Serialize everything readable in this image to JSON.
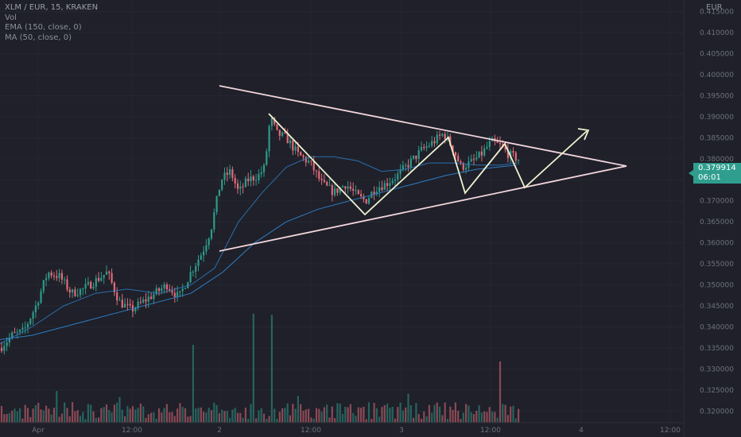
{
  "symbol_line": "XLM / EUR, 15, KRAKEN",
  "indicators": [
    "Vol",
    "EMA (150, close, 0)",
    "MA (50, close, 0)"
  ],
  "currency": "EUR",
  "current_price": {
    "value": "0.379914",
    "countdown": "06:01"
  },
  "colors": {
    "background": "#1f2029",
    "up_candle": "#2e9a8a",
    "down_candle": "#e26b7a",
    "ema_line": "#2e7dc4",
    "ma_line": "#2e7dc4",
    "triangle_lines": "#f2d5dc",
    "pattern_lines": "#eef2d0",
    "price_tag": "#2f9e8f"
  },
  "chart_data": {
    "type": "candlestick",
    "y_axis": {
      "ticks": [
        "0.320000",
        "0.325000",
        "0.330000",
        "0.335000",
        "0.340000",
        "0.345000",
        "0.350000",
        "0.355000",
        "0.360000",
        "0.365000",
        "0.370000",
        "0.375000",
        "0.380000",
        "0.385000",
        "0.390000",
        "0.395000",
        "0.400000",
        "0.405000",
        "0.410000",
        "0.415000"
      ],
      "range": [
        0.3195,
        0.417
      ]
    },
    "x_axis": {
      "ticks": [
        "Apr",
        "12:00",
        "2",
        "12:00",
        "3",
        "12:00",
        "4",
        "12:00"
      ]
    },
    "price_path": [
      [
        0,
        0.335
      ],
      [
        15,
        0.338
      ],
      [
        30,
        0.339
      ],
      [
        45,
        0.345
      ],
      [
        60,
        0.353
      ],
      [
        75,
        0.352
      ],
      [
        90,
        0.348
      ],
      [
        105,
        0.349
      ],
      [
        120,
        0.351
      ],
      [
        135,
        0.353
      ],
      [
        150,
        0.346
      ],
      [
        165,
        0.344
      ],
      [
        180,
        0.346
      ],
      [
        195,
        0.348
      ],
      [
        210,
        0.35
      ],
      [
        225,
        0.347
      ],
      [
        240,
        0.353
      ],
      [
        255,
        0.358
      ],
      [
        265,
        0.363
      ],
      [
        278,
        0.375
      ],
      [
        290,
        0.377
      ],
      [
        300,
        0.372
      ],
      [
        312,
        0.375
      ],
      [
        325,
        0.376
      ],
      [
        333,
        0.378
      ],
      [
        340,
        0.39
      ],
      [
        348,
        0.386
      ],
      [
        360,
        0.385
      ],
      [
        375,
        0.381
      ],
      [
        390,
        0.379
      ],
      [
        405,
        0.374
      ],
      [
        420,
        0.372
      ],
      [
        435,
        0.374
      ],
      [
        450,
        0.371
      ],
      [
        460,
        0.37
      ],
      [
        472,
        0.373
      ],
      [
        485,
        0.374
      ],
      [
        500,
        0.376
      ],
      [
        515,
        0.379
      ],
      [
        530,
        0.382
      ],
      [
        545,
        0.384
      ],
      [
        558,
        0.386
      ],
      [
        568,
        0.383
      ],
      [
        580,
        0.378
      ],
      [
        592,
        0.379
      ],
      [
        605,
        0.381
      ],
      [
        618,
        0.384
      ],
      [
        630,
        0.383
      ],
      [
        640,
        0.381
      ],
      [
        652,
        0.3799
      ]
    ],
    "ema_path": [
      [
        0,
        0.337
      ],
      [
        40,
        0.338
      ],
      [
        80,
        0.34
      ],
      [
        120,
        0.342
      ],
      [
        160,
        0.344
      ],
      [
        200,
        0.346
      ],
      [
        240,
        0.348
      ],
      [
        280,
        0.353
      ],
      [
        320,
        0.36
      ],
      [
        360,
        0.365
      ],
      [
        400,
        0.368
      ],
      [
        440,
        0.37
      ],
      [
        480,
        0.372
      ],
      [
        520,
        0.374
      ],
      [
        560,
        0.376
      ],
      [
        600,
        0.3775
      ],
      [
        650,
        0.3785
      ]
    ],
    "ma_path": [
      [
        0,
        0.336
      ],
      [
        40,
        0.34
      ],
      [
        80,
        0.345
      ],
      [
        120,
        0.348
      ],
      [
        160,
        0.349
      ],
      [
        200,
        0.348
      ],
      [
        240,
        0.35
      ],
      [
        270,
        0.354
      ],
      [
        300,
        0.365
      ],
      [
        330,
        0.372
      ],
      [
        360,
        0.378
      ],
      [
        390,
        0.3805
      ],
      [
        420,
        0.3805
      ],
      [
        450,
        0.3795
      ],
      [
        480,
        0.377
      ],
      [
        510,
        0.3775
      ],
      [
        540,
        0.379
      ],
      [
        570,
        0.379
      ],
      [
        600,
        0.3785
      ],
      [
        630,
        0.3785
      ],
      [
        650,
        0.379
      ]
    ],
    "volume_spikes": [
      [
        243,
        0.7
      ],
      [
        318,
        0.98
      ],
      [
        342,
        0.97
      ],
      [
        628,
        0.55
      ]
    ]
  }
}
